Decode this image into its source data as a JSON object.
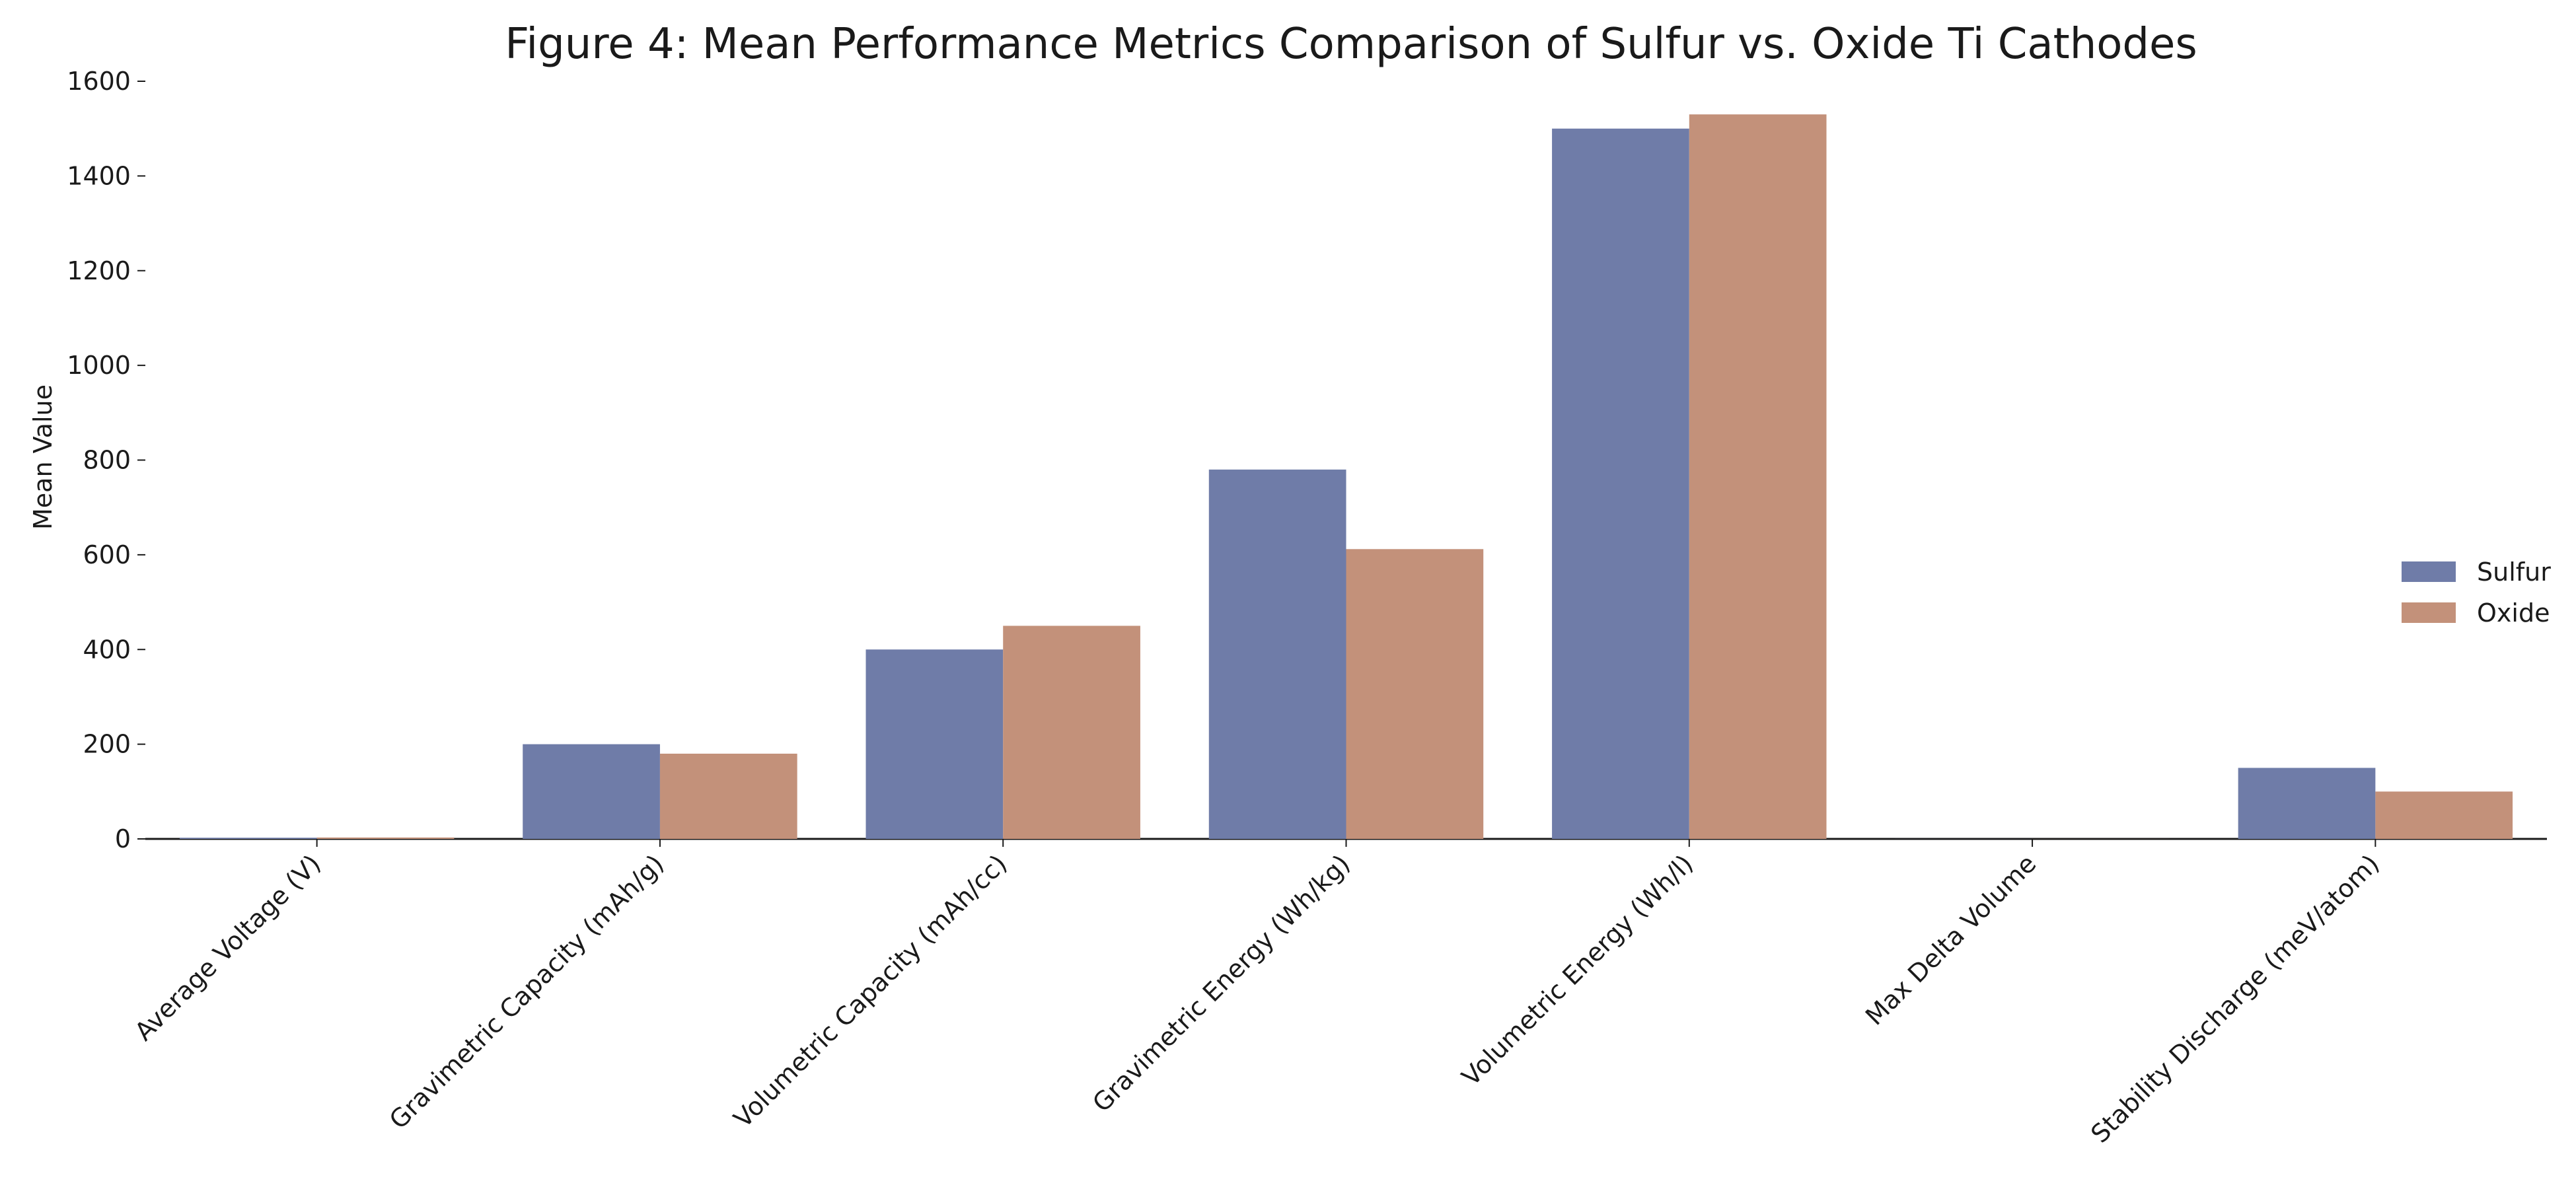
{
  "chart_data": {
    "type": "bar",
    "title": "Figure 4: Mean Performance Metrics Comparison of Sulfur vs. Oxide Ti Cathodes",
    "xlabel": "",
    "ylabel": "Mean Value",
    "ylim": [
      0,
      1600
    ],
    "yticks": [
      "0",
      "200",
      "400",
      "600",
      "800",
      "1000",
      "1200",
      "1400",
      "1600"
    ],
    "categories": [
      "Average Voltage (V)",
      "Gravimetric Capacity (mAh/g)",
      "Volumetric Capacity (mAh/cc)",
      "Gravimetric Energy (Wh/kg)",
      "Volumetric Energy (Wh/l)",
      "Max Delta Volume",
      "Stability Discharge (meV/atom)"
    ],
    "series": [
      {
        "name": "Sulfur",
        "color": "#6f7ca8",
        "values": [
          2.5,
          200,
          400,
          780,
          1500,
          0.1,
          150
        ]
      },
      {
        "name": "Oxide",
        "color": "#c3917a",
        "values": [
          3.0,
          180,
          450,
          612,
          1530,
          0.1,
          100
        ]
      }
    ],
    "legend_position": "center-right",
    "grid": false
  }
}
